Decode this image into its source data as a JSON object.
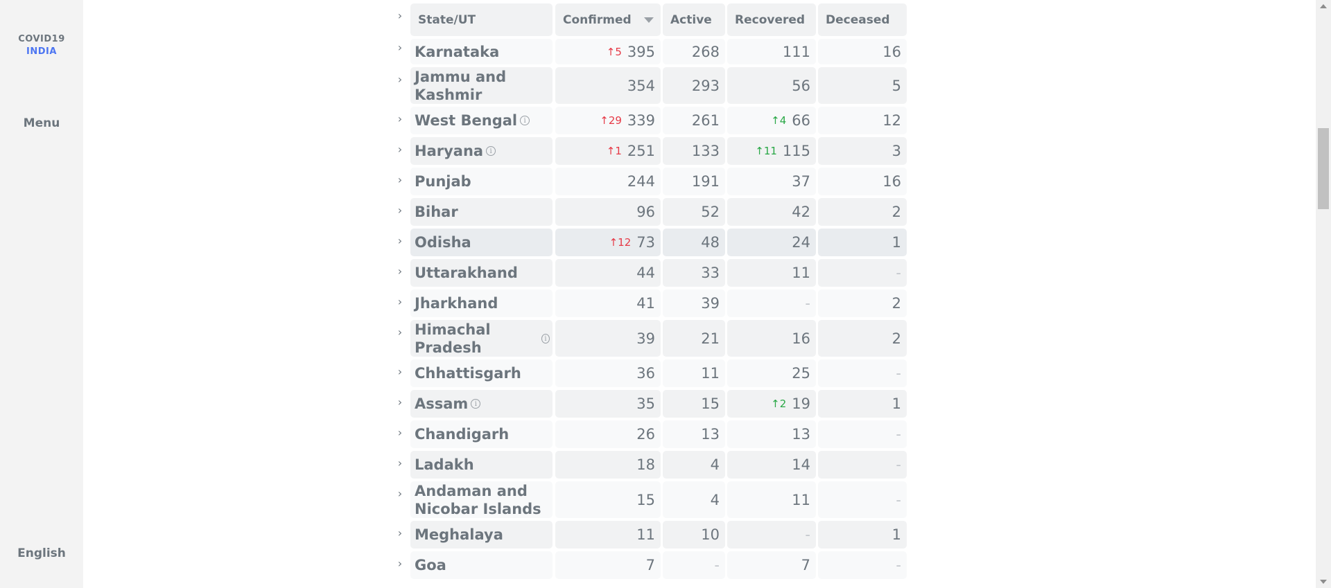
{
  "sidebar": {
    "logo_line1": "COVID19",
    "logo_line2": "INDIA",
    "menu_label": "Menu",
    "language_label": "English"
  },
  "table": {
    "headers": {
      "state": "State/UT",
      "confirmed": "Confirmed",
      "active": "Active",
      "recovered": "Recovered",
      "deceased": "Deceased"
    },
    "rows": [
      {
        "state": "Karnataka",
        "info": false,
        "confirmed": "395",
        "confirmed_delta": "5",
        "active": "268",
        "recovered": "111",
        "recovered_delta": "",
        "deceased": "16"
      },
      {
        "state": "Jammu and Kashmir",
        "info": false,
        "confirmed": "354",
        "confirmed_delta": "",
        "active": "293",
        "recovered": "56",
        "recovered_delta": "",
        "deceased": "5"
      },
      {
        "state": "West Bengal",
        "info": true,
        "confirmed": "339",
        "confirmed_delta": "29",
        "active": "261",
        "recovered": "66",
        "recovered_delta": "4",
        "deceased": "12"
      },
      {
        "state": "Haryana",
        "info": true,
        "confirmed": "251",
        "confirmed_delta": "1",
        "active": "133",
        "recovered": "115",
        "recovered_delta": "11",
        "deceased": "3"
      },
      {
        "state": "Punjab",
        "info": false,
        "confirmed": "244",
        "confirmed_delta": "",
        "active": "191",
        "recovered": "37",
        "recovered_delta": "",
        "deceased": "16"
      },
      {
        "state": "Bihar",
        "info": false,
        "confirmed": "96",
        "confirmed_delta": "",
        "active": "52",
        "recovered": "42",
        "recovered_delta": "",
        "deceased": "2"
      },
      {
        "state": "Odisha",
        "info": false,
        "confirmed": "73",
        "confirmed_delta": "12",
        "active": "48",
        "recovered": "24",
        "recovered_delta": "",
        "deceased": "1",
        "highlight": true
      },
      {
        "state": "Uttarakhand",
        "info": false,
        "confirmed": "44",
        "confirmed_delta": "",
        "active": "33",
        "recovered": "11",
        "recovered_delta": "",
        "deceased": "-"
      },
      {
        "state": "Jharkhand",
        "info": false,
        "confirmed": "41",
        "confirmed_delta": "",
        "active": "39",
        "recovered": "-",
        "recovered_delta": "",
        "deceased": "2"
      },
      {
        "state": "Himachal Pradesh",
        "info": true,
        "confirmed": "39",
        "confirmed_delta": "",
        "active": "21",
        "recovered": "16",
        "recovered_delta": "",
        "deceased": "2"
      },
      {
        "state": "Chhattisgarh",
        "info": false,
        "confirmed": "36",
        "confirmed_delta": "",
        "active": "11",
        "recovered": "25",
        "recovered_delta": "",
        "deceased": "-"
      },
      {
        "state": "Assam",
        "info": true,
        "confirmed": "35",
        "confirmed_delta": "",
        "active": "15",
        "recovered": "19",
        "recovered_delta": "2",
        "deceased": "1"
      },
      {
        "state": "Chandigarh",
        "info": false,
        "confirmed": "26",
        "confirmed_delta": "",
        "active": "13",
        "recovered": "13",
        "recovered_delta": "",
        "deceased": "-"
      },
      {
        "state": "Ladakh",
        "info": false,
        "confirmed": "18",
        "confirmed_delta": "",
        "active": "4",
        "recovered": "14",
        "recovered_delta": "",
        "deceased": "-"
      },
      {
        "state": "Andaman and Nicobar Islands",
        "info": false,
        "confirmed": "15",
        "confirmed_delta": "",
        "active": "4",
        "recovered": "11",
        "recovered_delta": "",
        "deceased": "-"
      },
      {
        "state": "Meghalaya",
        "info": false,
        "confirmed": "11",
        "confirmed_delta": "",
        "active": "10",
        "recovered": "-",
        "recovered_delta": "",
        "deceased": "1"
      },
      {
        "state": "Goa",
        "info": false,
        "confirmed": "7",
        "confirmed_delta": "",
        "active": "-",
        "recovered": "7",
        "recovered_delta": "",
        "deceased": "-"
      }
    ]
  },
  "colors": {
    "confirmed_delta": "#e63946",
    "recovered_delta": "#28a745",
    "brand_india": "#4c75f2"
  },
  "icons": {
    "expand": "chevron-right-icon",
    "info": "info-icon",
    "sort": "sort-down-icon",
    "delta_up": "arrow-up-icon"
  }
}
